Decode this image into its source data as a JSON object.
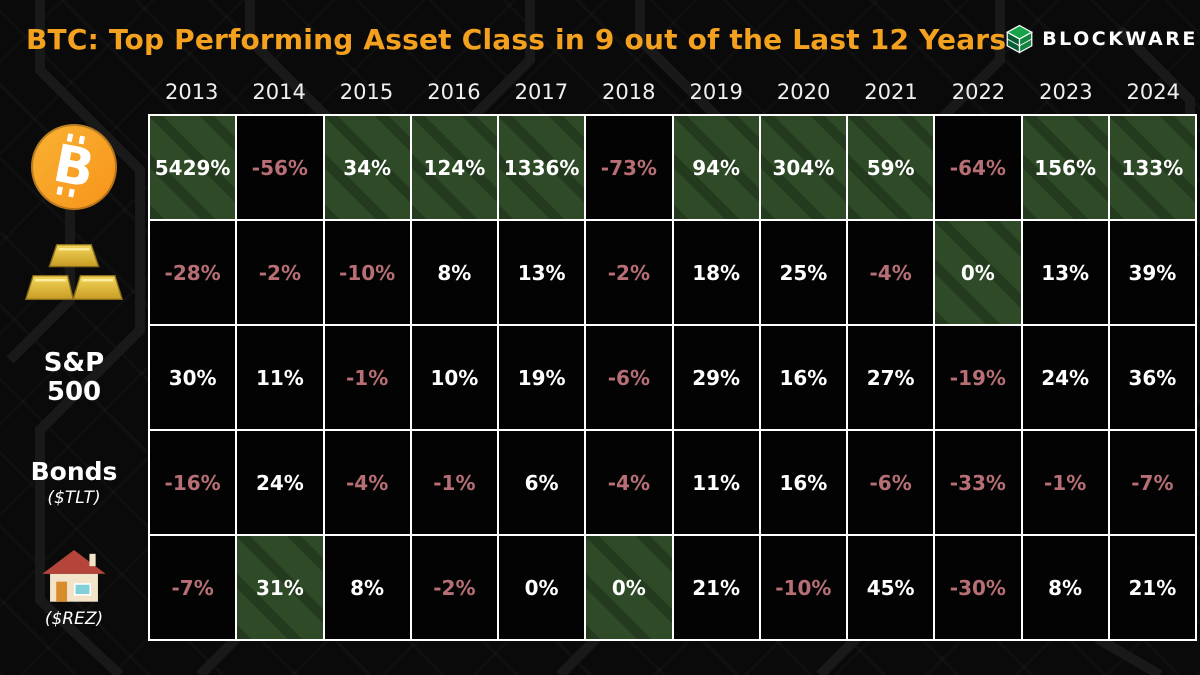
{
  "title": "BTC: Top Performing Asset Class in 9 out of the Last 12 Years",
  "logo": {
    "text": "BLOCKWARE",
    "icon": "green-cube-icon"
  },
  "colors": {
    "title_orange": "#f5a120",
    "btc_orange": "#f7931a",
    "negative_rose": "#b76f75",
    "highlight_green": "#2e4a27",
    "cell_black": "#030303",
    "grid_line": "#ffffff"
  },
  "sidebar": {
    "bitcoin_glyph": "B",
    "bitcoin_icon": "bitcoin-icon",
    "gold_icon": "gold-bars-icon",
    "sp500_line1": "S&P",
    "sp500_line2": "500",
    "bonds_label": "Bonds",
    "bonds_ticker": "($TLT)",
    "rez_icon": "house-icon",
    "rez_ticker": "($REZ)"
  },
  "chart_data": {
    "type": "table",
    "title": "BTC: Top Performing Asset Class in 9 out of the Last 12 Years",
    "columns": [
      "2013",
      "2014",
      "2015",
      "2016",
      "2017",
      "2018",
      "2019",
      "2020",
      "2021",
      "2022",
      "2023",
      "2024"
    ],
    "highlight_meaning": "green cell = top performing asset class of that year",
    "rows": [
      {
        "id": "bitcoin",
        "label": "Bitcoin",
        "values": [
          "5429%",
          "-56%",
          "34%",
          "124%",
          "1336%",
          "-73%",
          "94%",
          "304%",
          "59%",
          "-64%",
          "156%",
          "133%"
        ],
        "highlights": [
          1,
          0,
          1,
          1,
          1,
          0,
          1,
          1,
          1,
          0,
          1,
          1
        ]
      },
      {
        "id": "gold",
        "label": "Gold",
        "values": [
          "-28%",
          "-2%",
          "-10%",
          "8%",
          "13%",
          "-2%",
          "18%",
          "25%",
          "-4%",
          "0%",
          "13%",
          "39%"
        ],
        "highlights": [
          0,
          0,
          0,
          0,
          0,
          0,
          0,
          0,
          0,
          1,
          0,
          0
        ]
      },
      {
        "id": "sp500",
        "label": "S&P 500",
        "values": [
          "30%",
          "11%",
          "-1%",
          "10%",
          "19%",
          "-6%",
          "29%",
          "16%",
          "27%",
          "-19%",
          "24%",
          "36%"
        ],
        "highlights": [
          0,
          0,
          0,
          0,
          0,
          0,
          0,
          0,
          0,
          0,
          0,
          0
        ]
      },
      {
        "id": "bonds",
        "label": "Bonds ($TLT)",
        "values": [
          "-16%",
          "24%",
          "-4%",
          "-1%",
          "6%",
          "-4%",
          "11%",
          "16%",
          "-6%",
          "-33%",
          "-1%",
          "-7%"
        ],
        "highlights": [
          0,
          0,
          0,
          0,
          0,
          0,
          0,
          0,
          0,
          0,
          0,
          0
        ]
      },
      {
        "id": "rez",
        "label": "Real Estate ($REZ)",
        "values": [
          "-7%",
          "31%",
          "8%",
          "-2%",
          "0%",
          "0%",
          "21%",
          "-10%",
          "45%",
          "-30%",
          "8%",
          "21%"
        ],
        "highlights": [
          0,
          1,
          0,
          0,
          0,
          1,
          0,
          0,
          0,
          0,
          0,
          0
        ]
      }
    ]
  }
}
